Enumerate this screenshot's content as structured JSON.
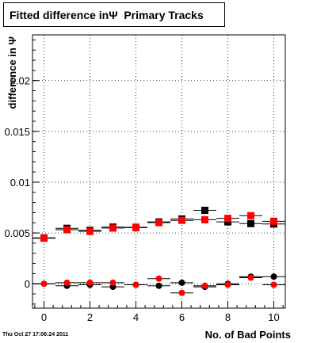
{
  "title": "Fitted difference inΨ  Primary Tracks",
  "timestamp": "Thu Oct 27 17:06:24 2011",
  "chart_data": {
    "type": "scatter",
    "title": "Fitted difference inΨ  Primary Tracks",
    "xlabel": "No. of Bad Points",
    "ylabel": "difference in Ψ",
    "xlim": [
      -0.5,
      10.5
    ],
    "ylim": [
      -0.0024,
      0.0245
    ],
    "x_ticks": [
      0,
      2,
      4,
      6,
      8,
      10
    ],
    "x_tick_labels": [
      "0",
      "2",
      "4",
      "6",
      "8",
      "10"
    ],
    "y_ticks": [
      0,
      0.005,
      0.01,
      0.015,
      0.02
    ],
    "y_tick_labels": [
      "0",
      "0.005",
      "0.01",
      "0.015",
      "0.02"
    ],
    "grid": true,
    "x_error": 0.5,
    "series": [
      {
        "marker": "square",
        "color": "#000000",
        "x": [
          0,
          1,
          2,
          3,
          4,
          5,
          6,
          7,
          8,
          9,
          10
        ],
        "values": [
          0.00452,
          0.00546,
          0.00526,
          0.00558,
          0.00556,
          0.00609,
          0.00638,
          0.00723,
          0.00609,
          0.00592,
          0.00588
        ]
      },
      {
        "marker": "square",
        "color": "#ff0000",
        "x": [
          0,
          1,
          2,
          3,
          4,
          5,
          6,
          7,
          8,
          9,
          10
        ],
        "values": [
          0.00448,
          0.00532,
          0.00516,
          0.00548,
          0.00552,
          0.00602,
          0.00624,
          0.0063,
          0.00644,
          0.0067,
          0.00615
        ]
      },
      {
        "marker": "circle",
        "color": "#000000",
        "x": [
          0,
          1,
          2,
          3,
          4,
          5,
          6,
          7,
          8,
          9,
          10
        ],
        "values": [
          0.0,
          -0.0002,
          -0.0001,
          -0.0003,
          -0.0001,
          -0.0002,
          0.0001,
          -0.0003,
          0.0,
          0.0007,
          0.0007
        ]
      },
      {
        "marker": "circle",
        "color": "#ff0000",
        "x": [
          0,
          1,
          2,
          3,
          4,
          5,
          6,
          7,
          8,
          9,
          10
        ],
        "values": [
          0.0,
          0.0001,
          0.0001,
          0.0001,
          -0.0001,
          0.0005,
          -0.0009,
          -0.0002,
          -0.0001,
          0.0006,
          -0.0001
        ]
      }
    ]
  }
}
